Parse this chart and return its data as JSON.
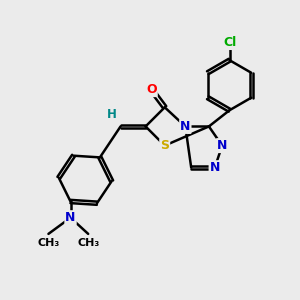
{
  "background_color": "#ebebeb",
  "bond_color": "#000000",
  "bond_width": 1.8,
  "atom_colors": {
    "N": "#0000cc",
    "O": "#ff0000",
    "S": "#ccaa00",
    "Cl": "#00aa00",
    "H": "#008888",
    "C": "#000000"
  },
  "font_size": 9
}
